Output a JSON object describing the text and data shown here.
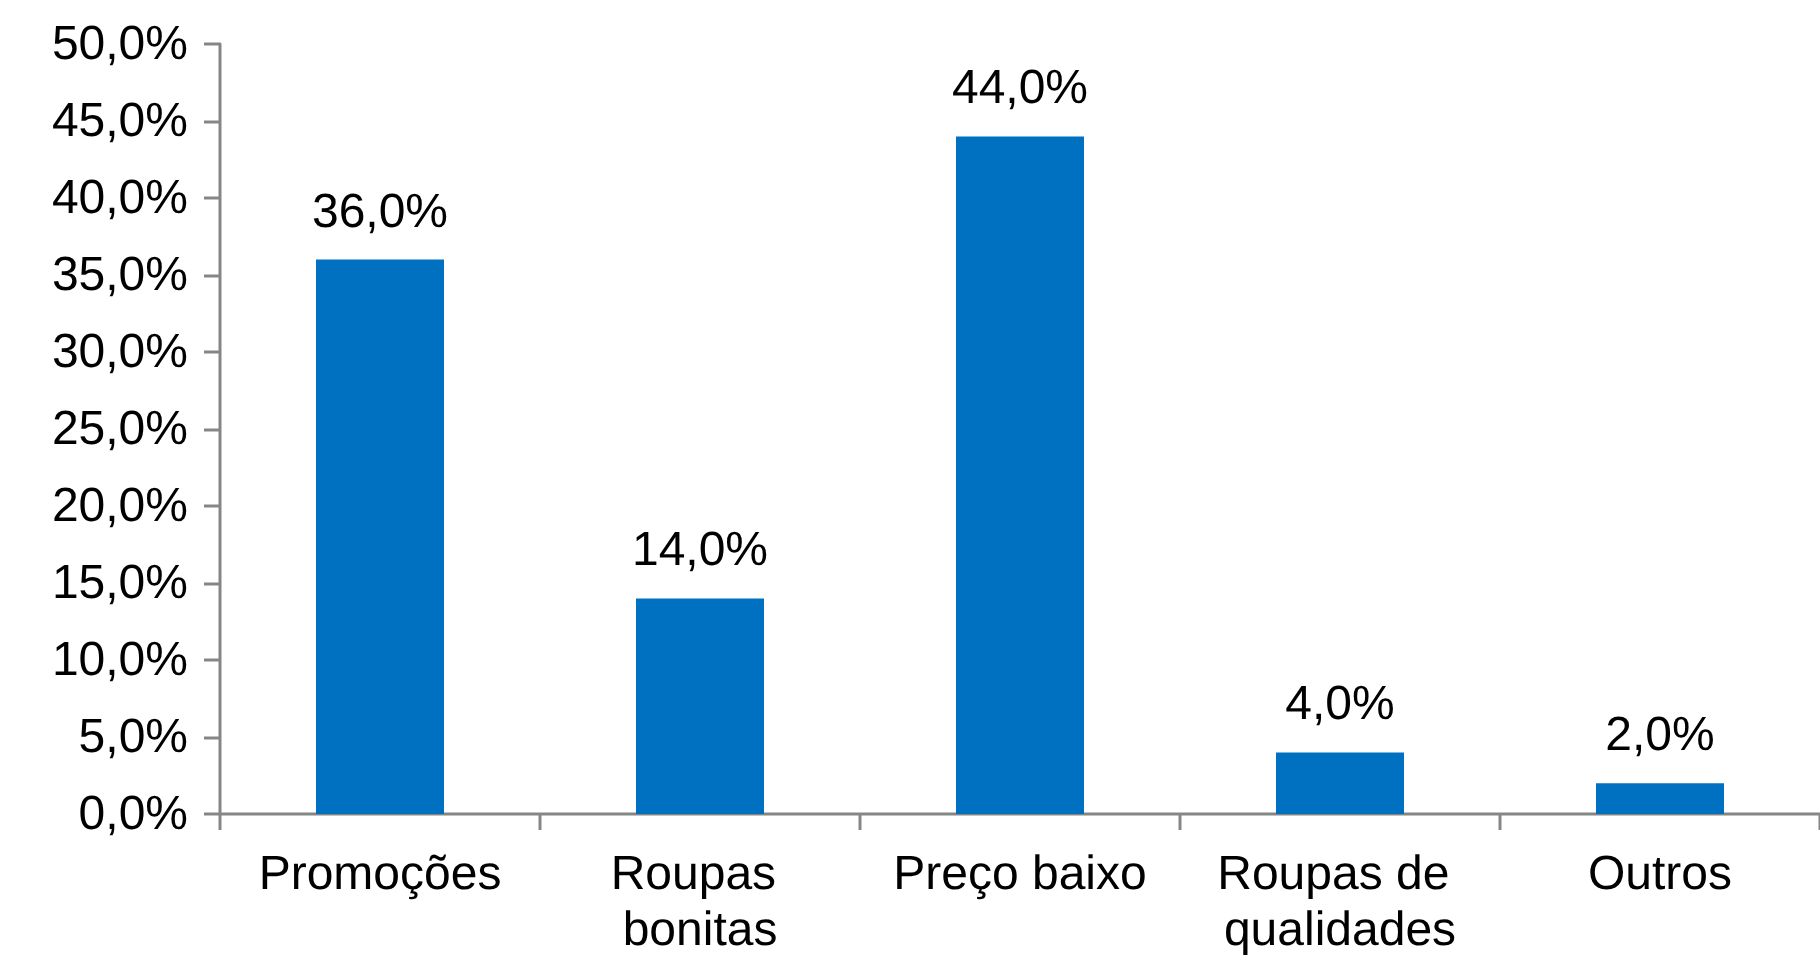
{
  "chart_data": {
    "type": "bar",
    "categories": [
      "Promoções",
      "Roupas bonitas",
      "Preço baixo",
      "Roupas de qualidades",
      "Outros"
    ],
    "values": [
      36,
      14,
      44,
      4,
      2
    ],
    "color": "#0070c0",
    "value_labels": [
      "36,0%",
      "14,0%",
      "44,0%",
      "4,0%",
      "2,0%"
    ],
    "ylim": [
      0,
      50
    ],
    "yticks": [
      {
        "value": 0,
        "label": "0,0%"
      },
      {
        "value": 5,
        "label": "5,0%"
      },
      {
        "value": 10,
        "label": "10,0%"
      },
      {
        "value": 15,
        "label": "15,0%"
      },
      {
        "value": 20,
        "label": "20,0%"
      },
      {
        "value": 25,
        "label": "25,0%"
      },
      {
        "value": 30,
        "label": "30,0%"
      },
      {
        "value": 35,
        "label": "35,0%"
      },
      {
        "value": 40,
        "label": "40,0%"
      },
      {
        "value": 45,
        "label": "45,0%"
      },
      {
        "value": 50,
        "label": "50,0%"
      }
    ]
  }
}
